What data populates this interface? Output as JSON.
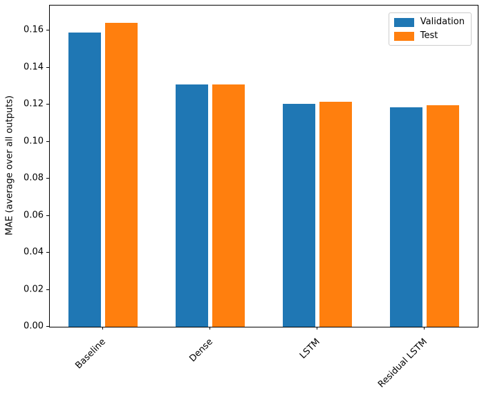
{
  "chart_data": {
    "type": "bar",
    "title": "",
    "xlabel": "",
    "ylabel": "MAE (average over all outputs)",
    "categories": [
      "Baseline",
      "Dense",
      "LSTM",
      "Residual LSTM"
    ],
    "series": [
      {
        "name": "Validation",
        "color": "#1f77b4",
        "values": [
          0.159,
          0.131,
          0.1205,
          0.1185
        ]
      },
      {
        "name": "Test",
        "color": "#ff7f0e",
        "values": [
          0.164,
          0.131,
          0.1215,
          0.1195
        ]
      }
    ],
    "ylim": [
      0,
      0.1735
    ],
    "yticks": [
      0.0,
      0.02,
      0.04,
      0.06,
      0.08,
      0.1,
      0.12,
      0.14,
      0.16
    ],
    "ytick_decimals": 2,
    "xtick_rotation": 45,
    "grid": false,
    "legend_position": "upper right",
    "colors": {
      "validation": "#1f77b4",
      "test": "#ff7f0e",
      "spine": "#000000",
      "legend_border": "#cccccc",
      "background": "#ffffff"
    }
  }
}
